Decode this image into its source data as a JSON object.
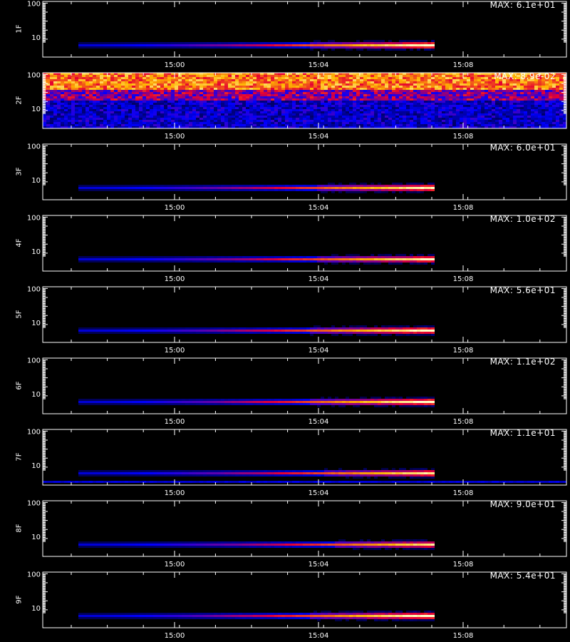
{
  "chart_data": {
    "type": "heatmap",
    "x_ticks": [
      "15:00",
      "15:04",
      "15:08"
    ],
    "y_ticks": [
      "100",
      "10"
    ],
    "x_axis_title": "",
    "panels": [
      {
        "label": "1F",
        "max": "MAX: 6.1e+01",
        "kind": "burst",
        "intensity": 1.0
      },
      {
        "label": "2F",
        "max": "MAX: 8.9e-02",
        "kind": "noise",
        "intensity": 1.0
      },
      {
        "label": "3F",
        "max": "MAX: 6.0e+01",
        "kind": "burst",
        "intensity": 0.95
      },
      {
        "label": "4F",
        "max": "MAX: 1.0e+02",
        "kind": "burst",
        "intensity": 0.95
      },
      {
        "label": "5F",
        "max": "MAX: 5.6e+01",
        "kind": "burst",
        "intensity": 1.0
      },
      {
        "label": "6F",
        "max": "MAX: 1.1e+02",
        "kind": "burst",
        "intensity": 1.0
      },
      {
        "label": "7F",
        "max": "MAX: 1.1e+01",
        "kind": "burst",
        "intensity": 0.9
      },
      {
        "label": "8F",
        "max": "MAX: 9.0e+01",
        "kind": "burst",
        "intensity": 0.85
      },
      {
        "label": "9F",
        "max": "MAX: 5.4e+01",
        "kind": "burst",
        "intensity": 1.0
      }
    ]
  }
}
